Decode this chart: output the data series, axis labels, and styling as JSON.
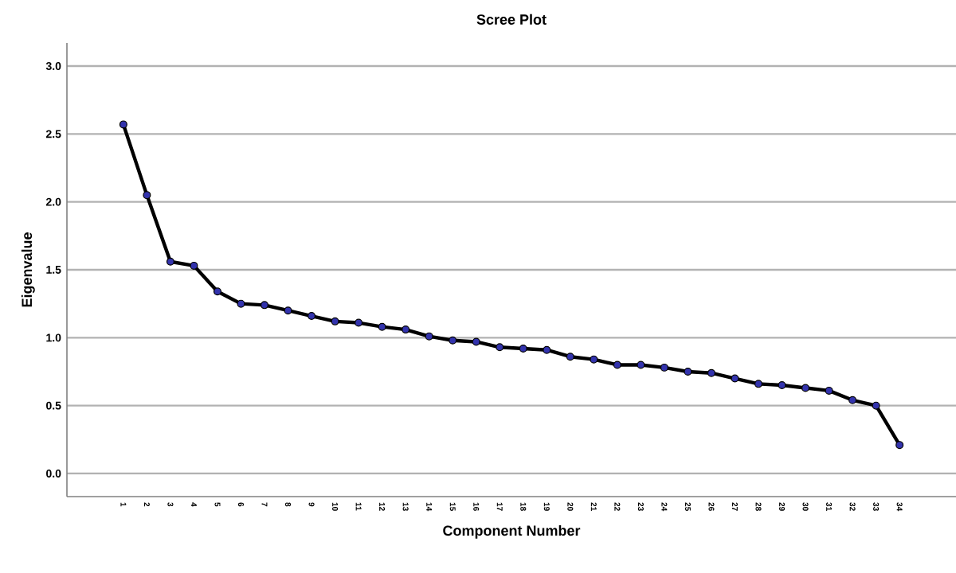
{
  "chart_data": {
    "type": "line",
    "title": "Scree Plot",
    "xlabel": "Component Number",
    "ylabel": "Eigenvalue",
    "categories": [
      "1",
      "2",
      "3",
      "4",
      "5",
      "6",
      "7",
      "8",
      "9",
      "10",
      "11",
      "12",
      "13",
      "14",
      "15",
      "16",
      "17",
      "18",
      "19",
      "20",
      "21",
      "22",
      "23",
      "24",
      "25",
      "26",
      "27",
      "28",
      "29",
      "30",
      "31",
      "32",
      "33",
      "34"
    ],
    "series": [
      {
        "color": "#000000",
        "values": [
          2.57,
          2.05,
          1.56,
          1.53,
          1.34,
          1.25,
          1.24,
          1.2,
          1.16,
          1.12,
          1.11,
          1.08,
          1.06,
          1.01,
          0.98,
          0.97,
          0.93,
          0.92,
          0.91,
          0.86,
          0.84,
          0.8,
          0.8,
          0.78,
          0.75,
          0.74,
          0.7,
          0.66,
          0.65,
          0.63,
          0.61,
          0.54,
          0.5,
          0.21
        ]
      }
    ],
    "ylim": [
      -0.17,
      3.17
    ],
    "yticks": [
      {
        "value": 0,
        "label": "0.0"
      },
      {
        "value": 0.5,
        "label": "0.5"
      },
      {
        "value": 1,
        "label": "1.0"
      },
      {
        "value": 1.5,
        "label": "1.5"
      },
      {
        "value": 2,
        "label": "2.0"
      },
      {
        "value": 2.5,
        "label": "2.5"
      },
      {
        "value": 3,
        "label": "3.0"
      }
    ],
    "grid": "y",
    "marker": "circle",
    "line_style": "solid"
  }
}
